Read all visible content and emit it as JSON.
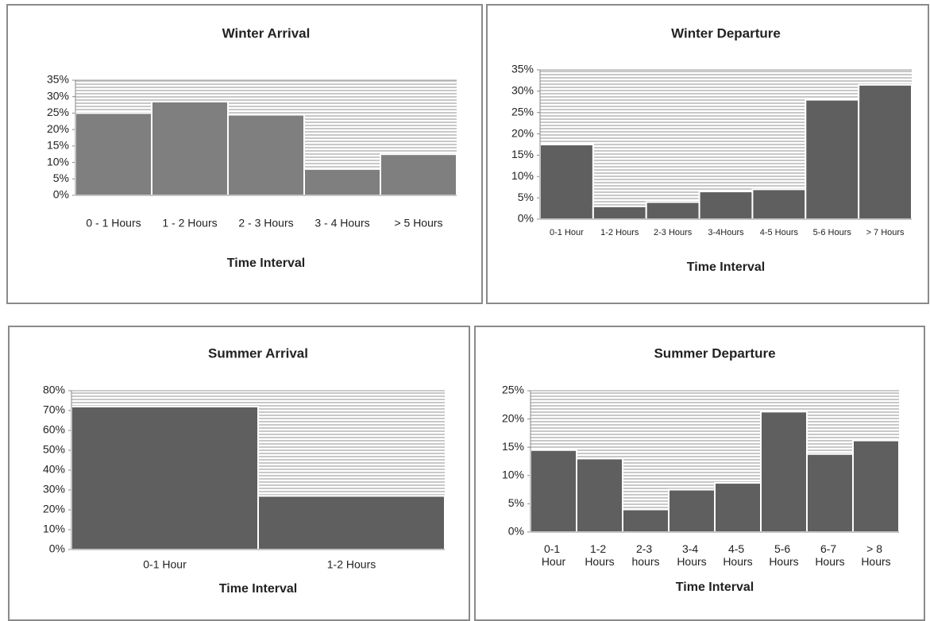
{
  "chart_data": [
    {
      "type": "bar",
      "title": "Winter Arrival",
      "x_label": "Time Interval",
      "categories": [
        "0 - 1 Hours",
        "1 - 2 Hours",
        "2 - 3 Hours",
        "3 - 4 Hours",
        "> 5 Hours"
      ],
      "values": [
        25,
        28.5,
        24.5,
        8,
        12.5
      ],
      "color": "#7f7f7f",
      "ylim": [
        0,
        35
      ],
      "yticks": [
        {
          "value": 0,
          "label": "0%"
        },
        {
          "value": 5,
          "label": "5%"
        },
        {
          "value": 10,
          "label": "10%"
        },
        {
          "value": 15,
          "label": "15%"
        },
        {
          "value": 20,
          "label": "20%"
        },
        {
          "value": 25,
          "label": "25%"
        },
        {
          "value": 30,
          "label": "30%"
        },
        {
          "value": 35,
          "label": "35%"
        }
      ]
    },
    {
      "type": "bar",
      "title": "Winter Departure",
      "x_label": "Time Interval",
      "categories": [
        "0-1 Hour",
        "1-2 Hours",
        "2-3 Hours",
        "3-4Hours",
        "4-5 Hours",
        "5-6 Hours",
        "> 7 Hours"
      ],
      "values": [
        17.5,
        3,
        4,
        6.5,
        7,
        28,
        31.5
      ],
      "color": "#5f5f5f",
      "ylim": [
        0,
        35
      ],
      "yticks": [
        {
          "value": 0,
          "label": "0%"
        },
        {
          "value": 5,
          "label": "5%"
        },
        {
          "value": 10,
          "label": "10%"
        },
        {
          "value": 15,
          "label": "15%"
        },
        {
          "value": 20,
          "label": "20%"
        },
        {
          "value": 25,
          "label": "25%"
        },
        {
          "value": 30,
          "label": "30%"
        },
        {
          "value": 35,
          "label": "35%"
        }
      ]
    },
    {
      "type": "bar",
      "title": "Summer Arrival",
      "x_label": "Time Interval",
      "categories": [
        "0-1 Hour",
        "1-2 Hours"
      ],
      "values": [
        72,
        27
      ],
      "color": "#5f5f5f",
      "ylim": [
        0,
        80
      ],
      "yticks": [
        {
          "value": 0,
          "label": "0%"
        },
        {
          "value": 10,
          "label": "10%"
        },
        {
          "value": 20,
          "label": "20%"
        },
        {
          "value": 30,
          "label": "30%"
        },
        {
          "value": 40,
          "label": "40%"
        },
        {
          "value": 50,
          "label": "50%"
        },
        {
          "value": 60,
          "label": "60%"
        },
        {
          "value": 70,
          "label": "70%"
        },
        {
          "value": 80,
          "label": "80%"
        }
      ]
    },
    {
      "type": "bar",
      "title": "Summer Departure",
      "x_label": "Time Interval",
      "categories": [
        "0-1 Hour",
        "1-2 Hours",
        "2-3 hours",
        "3-4 Hours",
        "4-5 Hours",
        "5-6 Hours",
        "6-7 Hours",
        "> 8 Hours"
      ],
      "values": [
        14.5,
        13,
        4,
        7.5,
        8.7,
        21.3,
        13.8,
        16.2
      ],
      "color": "#5f5f5f",
      "ylim": [
        0,
        25
      ],
      "yticks": [
        {
          "value": 0,
          "label": "0%"
        },
        {
          "value": 5,
          "label": "5%"
        },
        {
          "value": 10,
          "label": "10%"
        },
        {
          "value": 15,
          "label": "15%"
        },
        {
          "value": 20,
          "label": "20%"
        },
        {
          "value": 25,
          "label": "25%"
        }
      ]
    }
  ]
}
